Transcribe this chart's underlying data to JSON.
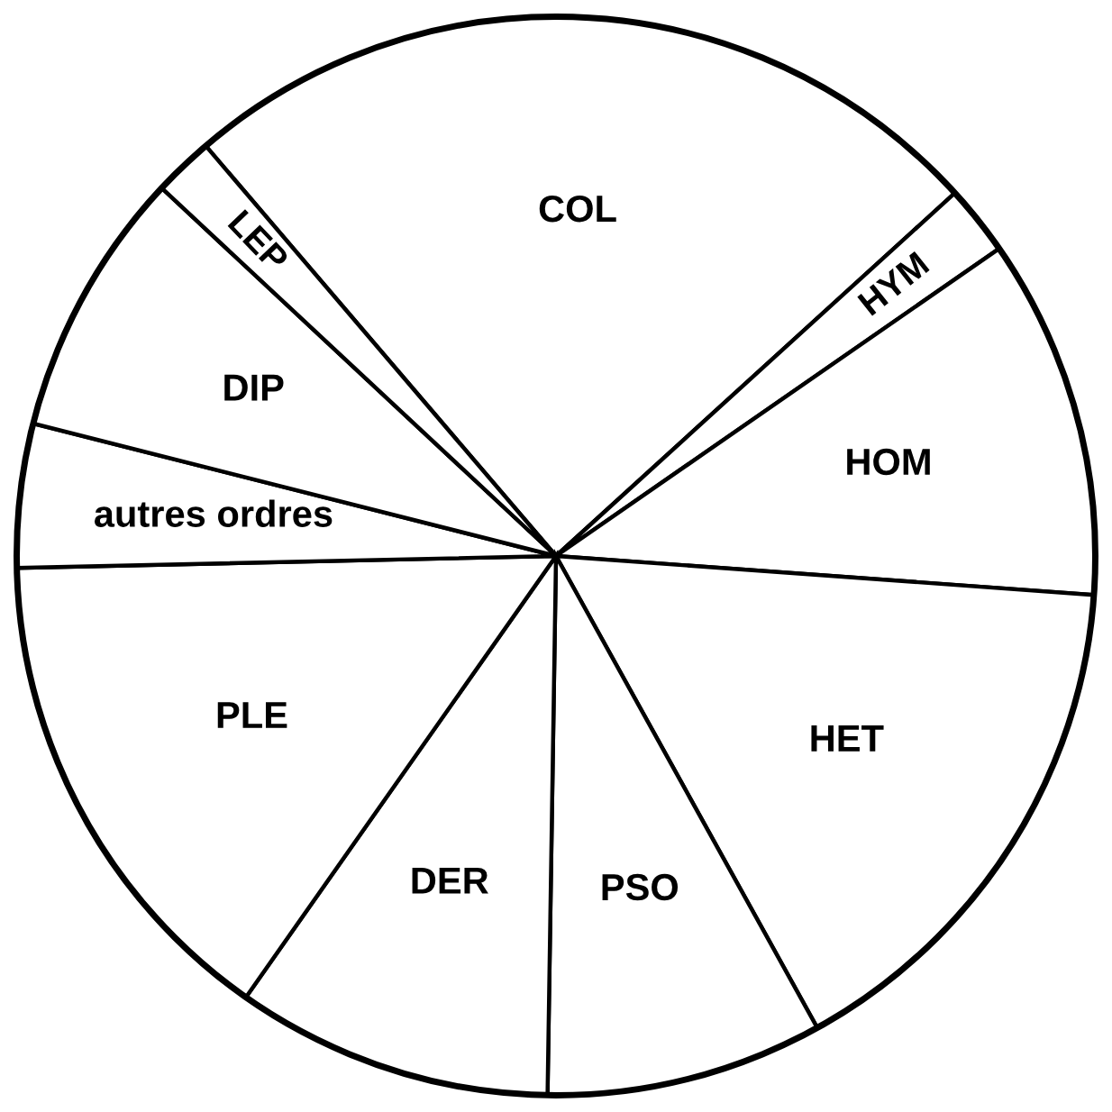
{
  "chart_data": {
    "type": "pie",
    "categories": [
      "COL",
      "HYM",
      "HOM",
      "HET",
      "PSO",
      "DER",
      "PLE",
      "autres ordres",
      "DIP",
      "LEP"
    ],
    "values": [
      24.5,
      2.1,
      10.8,
      15.8,
      8.3,
      9.5,
      14.9,
      4.3,
      8.0,
      1.8
    ],
    "colors": [
      "#ffffff",
      "#ffffff",
      "#ffffff",
      "#ffffff",
      "#ffffff",
      "#ffffff",
      "#ffffff",
      "#ffffff",
      "#ffffff",
      "#ffffff"
    ]
  }
}
